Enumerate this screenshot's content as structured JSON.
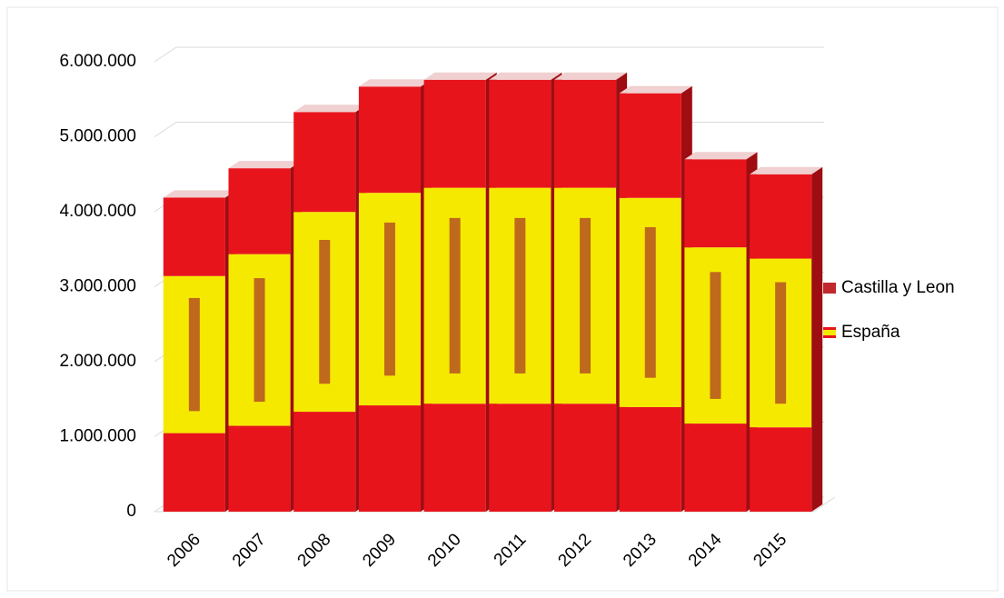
{
  "chart_data": {
    "type": "bar3d",
    "categories": [
      "2006",
      "2007",
      "2008",
      "2009",
      "2010",
      "2011",
      "2012",
      "2013",
      "2014",
      "2015"
    ],
    "series": [
      {
        "name": "Castilla y Leon",
        "color": "#c0282d",
        "values": [
          null,
          null,
          null,
          null,
          null,
          null,
          null,
          null,
          null,
          null
        ]
      },
      {
        "name": "España",
        "color": "#e8141c",
        "values": [
          4190000,
          4580000,
          5330000,
          5670000,
          5760000,
          5760000,
          5760000,
          5580000,
          4700000,
          4500000
        ]
      }
    ],
    "ylim": [
      0,
      6000000
    ],
    "yticks": [
      {
        "value": 0,
        "label": "0"
      },
      {
        "value": 1000000,
        "label": "1.000.000"
      },
      {
        "value": 2000000,
        "label": "2.000.000"
      },
      {
        "value": 3000000,
        "label": "3.000.000"
      },
      {
        "value": 4000000,
        "label": "4.000.000"
      },
      {
        "value": 5000000,
        "label": "5.000.000"
      },
      {
        "value": 6000000,
        "label": "6.000.000"
      }
    ],
    "grid": true,
    "legend": "right"
  }
}
